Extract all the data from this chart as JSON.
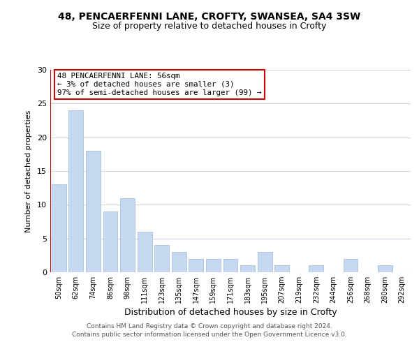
{
  "title1": "48, PENCAERFENNI LANE, CROFTY, SWANSEA, SA4 3SW",
  "title2": "Size of property relative to detached houses in Crofty",
  "xlabel": "Distribution of detached houses by size in Crofty",
  "ylabel": "Number of detached properties",
  "categories": [
    "50sqm",
    "62sqm",
    "74sqm",
    "86sqm",
    "98sqm",
    "111sqm",
    "123sqm",
    "135sqm",
    "147sqm",
    "159sqm",
    "171sqm",
    "183sqm",
    "195sqm",
    "207sqm",
    "219sqm",
    "232sqm",
    "244sqm",
    "256sqm",
    "268sqm",
    "280sqm",
    "292sqm"
  ],
  "values": [
    13,
    24,
    18,
    9,
    11,
    6,
    4,
    3,
    2,
    2,
    2,
    1,
    3,
    1,
    0,
    1,
    0,
    2,
    0,
    1,
    0
  ],
  "bar_color": "#c5d8f0",
  "bar_edge_color": "#a0b8d8",
  "highlight_color": "#cc0000",
  "annotation_lines": [
    "48 PENCAERFENNI LANE: 56sqm",
    "← 3% of detached houses are smaller (3)",
    "97% of semi-detached houses are larger (99) →"
  ],
  "annotation_box_color": "#ffffff",
  "annotation_box_edge": "#cc0000",
  "ylim": [
    0,
    30
  ],
  "yticks": [
    0,
    5,
    10,
    15,
    20,
    25,
    30
  ],
  "footer1": "Contains HM Land Registry data © Crown copyright and database right 2024.",
  "footer2": "Contains public sector information licensed under the Open Government Licence v3.0.",
  "bg_color": "#ffffff",
  "grid_color": "#d0d8e8"
}
